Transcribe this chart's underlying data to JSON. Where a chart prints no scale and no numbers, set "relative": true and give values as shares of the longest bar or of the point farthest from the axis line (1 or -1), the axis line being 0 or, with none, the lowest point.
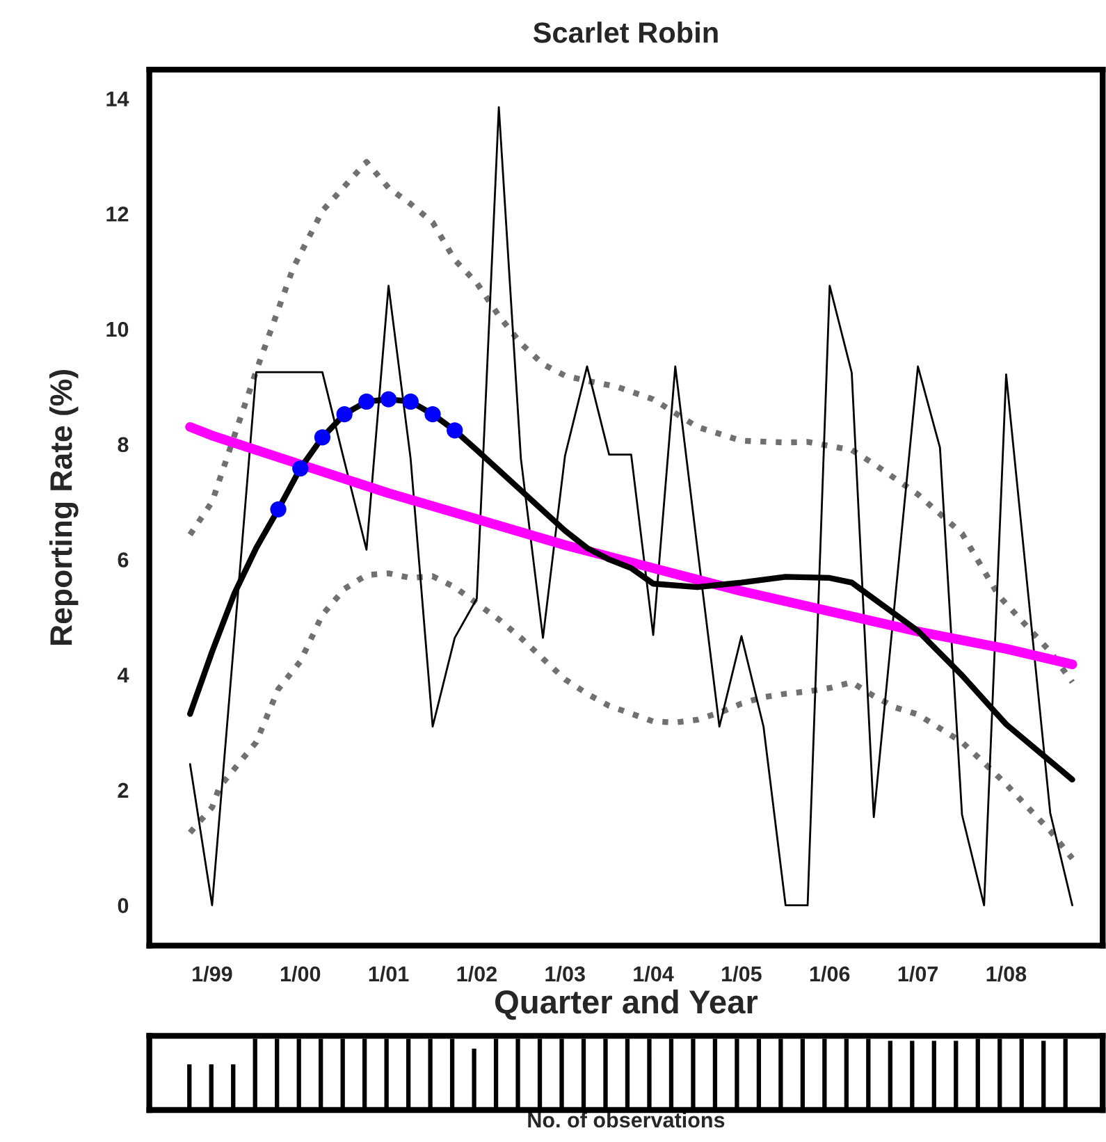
{
  "chart_data": [
    {
      "type": "line",
      "title": "Scarlet Robin",
      "xlabel": "Quarter and Year",
      "ylabel": "Reporting Rate (%)",
      "xlim": [
        "1998-04-15",
        "2009-02-05"
      ],
      "ylim": [
        -0.7,
        14.5
      ],
      "xticks": [
        {
          "value": "1999-01",
          "label": "1/99"
        },
        {
          "value": "2000-01",
          "label": "1/00"
        },
        {
          "value": "2001-01",
          "label": "1/01"
        },
        {
          "value": "2002-01",
          "label": "1/02"
        },
        {
          "value": "2003-01",
          "label": "1/03"
        },
        {
          "value": "2004-01",
          "label": "1/04"
        },
        {
          "value": "2005-01",
          "label": "1/05"
        },
        {
          "value": "2006-01",
          "label": "1/06"
        },
        {
          "value": "2007-01",
          "label": "1/07"
        },
        {
          "value": "2008-01",
          "label": "1/08"
        }
      ],
      "yticks": [
        0,
        2,
        4,
        6,
        8,
        10,
        12,
        14
      ],
      "series": [
        {
          "type": "line",
          "color": "#707070",
          "line_style": "dotted",
          "x": [
            "1998-10",
            "1999-01",
            "1999-07",
            "1999-12",
            "2000-04",
            "2000-10",
            "2001-01",
            "2001-04",
            "2001-07",
            "2001-10",
            "2002-01",
            "2002-04",
            "2002-07",
            "2002-10",
            "2003-01",
            "2003-04",
            "2003-08",
            "2004-01",
            "2004-04",
            "2004-07",
            "2005-01",
            "2005-07",
            "2005-10",
            "2006-04",
            "2006-07",
            "2007-01",
            "2007-07",
            "2007-12",
            "2008-07",
            "2008-10"
          ],
          "values": [
            6.43,
            7.0,
            9.27,
            11.05,
            12.05,
            12.9,
            12.45,
            12.17,
            11.85,
            11.2,
            10.8,
            10.23,
            9.75,
            9.39,
            9.19,
            9.1,
            9.0,
            8.78,
            8.54,
            8.3,
            8.06,
            8.03,
            8.04,
            7.9,
            7.66,
            7.13,
            6.45,
            5.37,
            4.4,
            3.87
          ]
        },
        {
          "type": "line",
          "color": "#707070",
          "line_style": "dotted",
          "x": [
            "1998-10",
            "1999-01",
            "1999-02",
            "1999-07",
            "1999-10",
            "2000-01",
            "2000-04",
            "2000-07",
            "2000-10",
            "2001-01",
            "2001-04",
            "2001-07",
            "2001-10",
            "2002-01",
            "2002-04",
            "2002-07",
            "2002-10",
            "2003-01",
            "2003-04",
            "2003-07",
            "2004-01",
            "2004-04",
            "2004-07",
            "2004-10",
            "2005-01",
            "2005-04",
            "2005-07",
            "2005-10",
            "2006-01",
            "2006-04",
            "2006-07",
            "2006-10",
            "2007-01",
            "2007-04",
            "2007-07",
            "2007-10",
            "2008-01",
            "2008-04",
            "2008-07",
            "2008-10"
          ],
          "values": [
            1.26,
            1.7,
            2.05,
            2.83,
            3.75,
            4.23,
            5.04,
            5.49,
            5.73,
            5.76,
            5.68,
            5.71,
            5.52,
            5.24,
            4.96,
            4.64,
            4.28,
            3.92,
            3.67,
            3.46,
            3.19,
            3.17,
            3.22,
            3.34,
            3.5,
            3.61,
            3.67,
            3.71,
            3.77,
            3.87,
            3.63,
            3.43,
            3.31,
            3.07,
            2.83,
            2.47,
            2.1,
            1.69,
            1.29,
            0.81
          ]
        },
        {
          "type": "line",
          "color": "#000000",
          "line_style": "solid",
          "x": [
            "1998-10",
            "1999-01",
            "1999-04",
            "1999-07",
            "1999-10",
            "2000-01",
            "2000-04",
            "2000-07",
            "2000-10",
            "2001-01",
            "2001-04",
            "2001-07",
            "2001-10",
            "2002-01",
            "2002-04",
            "2002-07",
            "2002-10",
            "2003-01",
            "2003-04",
            "2003-07",
            "2003-10",
            "2004-01",
            "2004-04",
            "2004-07",
            "2004-10",
            "2005-01",
            "2005-04",
            "2005-07",
            "2005-10",
            "2006-01",
            "2006-04",
            "2006-07",
            "2006-10",
            "2007-01",
            "2007-04",
            "2007-07",
            "2007-10",
            "2008-01",
            "2008-04",
            "2008-07",
            "2008-10"
          ],
          "values": [
            2.45,
            0,
            4.6,
            9.25,
            9.25,
            9.25,
            9.25,
            7.7,
            6.17,
            10.75,
            7.75,
            3.1,
            4.64,
            5.32,
            13.85,
            7.75,
            4.64,
            7.8,
            9.35,
            7.82,
            7.82,
            4.69,
            9.35,
            6.2,
            3.1,
            4.67,
            3.1,
            0,
            0,
            10.75,
            9.24,
            1.53,
            5.45,
            9.35,
            7.94,
            1.57,
            0,
            9.21,
            5.4,
            1.6,
            0
          ]
        },
        {
          "type": "line",
          "color": "#ff00ff",
          "line_style": "solid",
          "x": [
            "1998-10",
            "1999-01",
            "2000-01",
            "2001-01",
            "2002-01",
            "2003-01",
            "2004-01",
            "2005-01",
            "2006-01",
            "2007-01",
            "2008-01",
            "2008-10"
          ],
          "values": [
            8.3,
            8.15,
            7.65,
            7.15,
            6.7,
            6.25,
            5.85,
            5.45,
            5.1,
            4.75,
            4.45,
            4.18
          ]
        },
        {
          "type": "line",
          "color": "#000000",
          "line_style": "solid",
          "x": [
            "1998-10",
            "1999-01",
            "1999-04",
            "1999-07",
            "1999-10",
            "2000-01",
            "2000-04",
            "2000-07",
            "2000-10",
            "2001-01",
            "2001-04",
            "2001-07",
            "2001-10",
            "2002-01",
            "2002-07",
            "2003-01",
            "2003-04",
            "2003-07",
            "2003-10",
            "2004-01",
            "2004-07",
            "2005-01",
            "2005-07",
            "2006-01",
            "2006-04",
            "2006-07",
            "2007-01",
            "2007-07",
            "2008-01",
            "2008-07",
            "2008-10"
          ],
          "values": [
            3.32,
            4.4,
            5.4,
            6.2,
            6.87,
            7.58,
            8.12,
            8.52,
            8.74,
            8.78,
            8.74,
            8.52,
            8.24,
            7.9,
            7.2,
            6.5,
            6.2,
            6.0,
            5.85,
            5.58,
            5.52,
            5.6,
            5.7,
            5.68,
            5.6,
            5.32,
            4.76,
            3.99,
            3.14,
            2.5,
            2.18
          ]
        },
        {
          "type": "scatter",
          "color": "#0000ff",
          "marker": "circle",
          "x": [
            "1999-10",
            "2000-01",
            "2000-04",
            "2000-07",
            "2000-10",
            "2001-01",
            "2001-04",
            "2001-07",
            "2001-10"
          ],
          "values": [
            6.87,
            7.58,
            8.12,
            8.52,
            8.74,
            8.78,
            8.74,
            8.52,
            8.24
          ]
        }
      ]
    },
    {
      "type": "bar",
      "relative": true,
      "xlabel": "No. of observations",
      "color": "#000000",
      "tick_labels": false,
      "categories": [
        null,
        null,
        null,
        null,
        null,
        null,
        null,
        null,
        null,
        null,
        null,
        null,
        null,
        null,
        null,
        null,
        null,
        null,
        null,
        null,
        null,
        null,
        null,
        null,
        null,
        null,
        null,
        null,
        null,
        null,
        null,
        null,
        null,
        null,
        null,
        null,
        null,
        null,
        null,
        null,
        null
      ],
      "values": [
        0.64,
        0.64,
        0.64,
        1,
        1,
        1,
        1,
        1,
        1,
        1,
        1,
        1,
        1,
        0.86,
        1,
        1,
        1,
        1,
        1,
        1,
        1,
        1,
        1,
        1,
        1,
        1,
        1,
        1,
        1,
        1,
        1,
        1,
        0.97,
        0.97,
        0.97,
        0.97,
        1,
        1,
        1,
        0.97,
        1
      ]
    }
  ]
}
